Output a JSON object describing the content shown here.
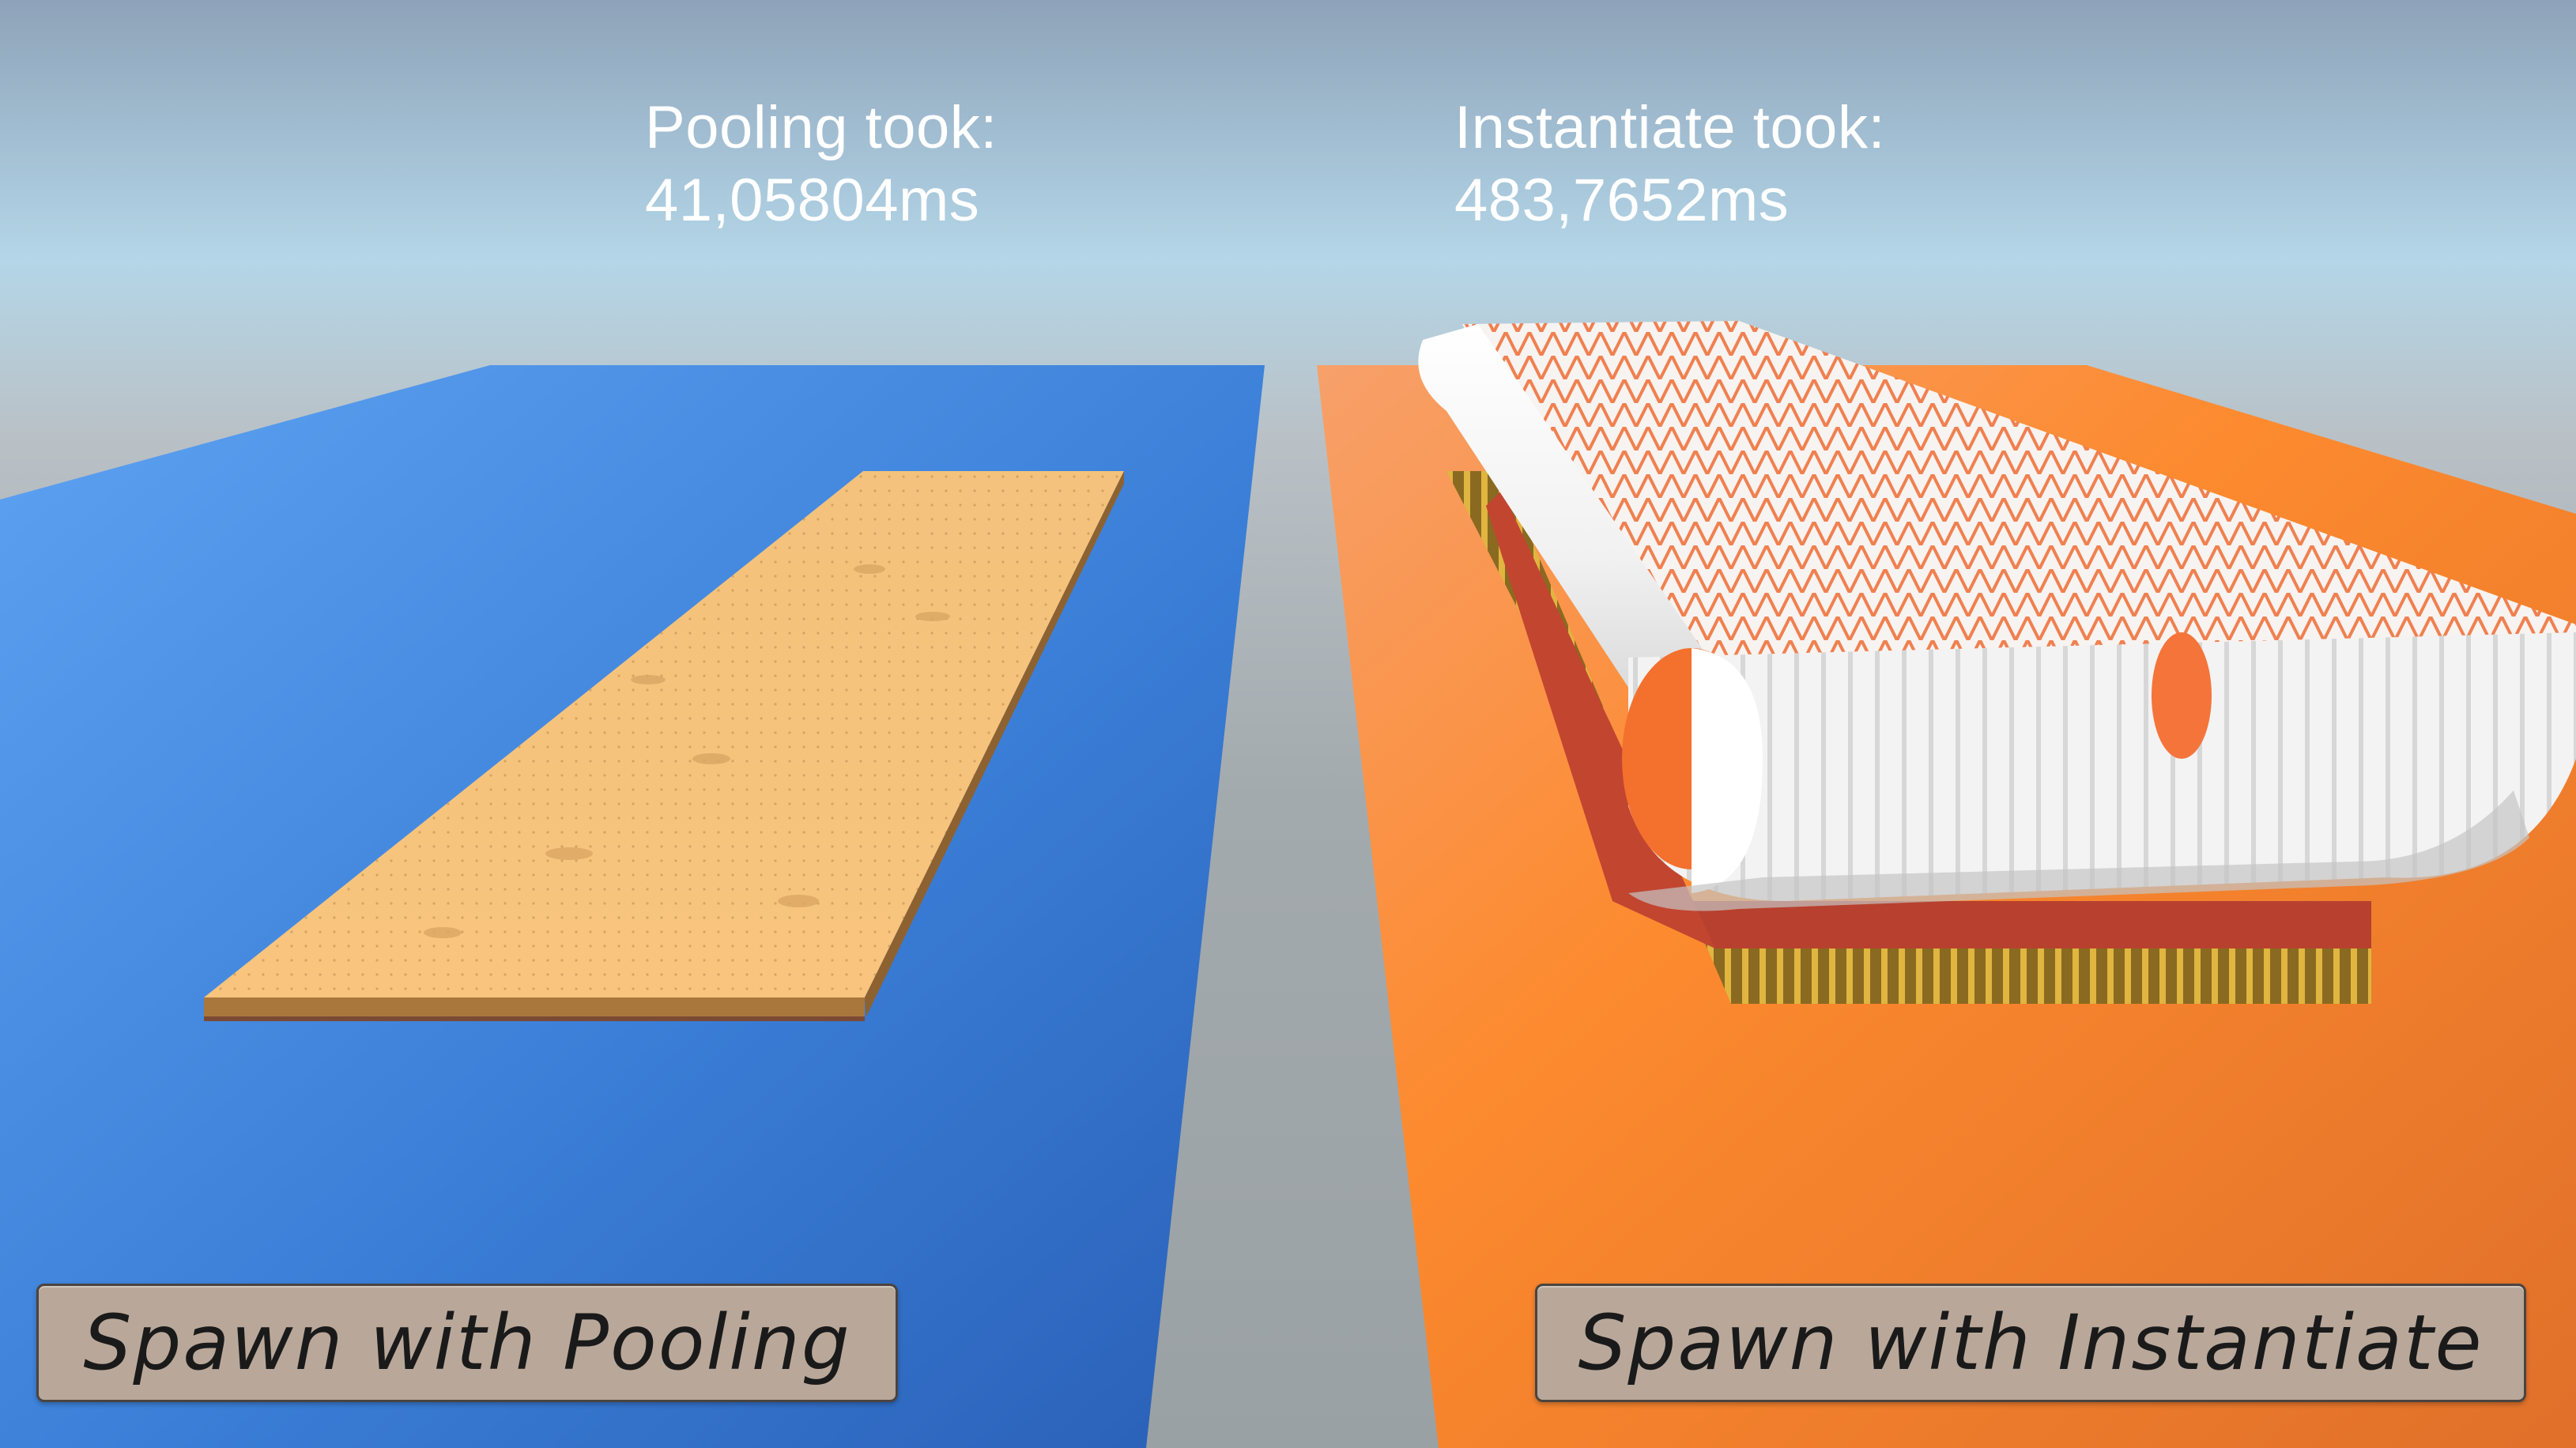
{
  "pooling": {
    "label": "Pooling took:",
    "value": "41,05804ms"
  },
  "instantiate": {
    "label": "Instantiate took:",
    "value": "483,7652ms"
  },
  "buttons": {
    "pooling": "Spawn with Pooling",
    "instantiate": "Spawn with Instantiate"
  },
  "colors": {
    "sky_top": "#8fa6bd",
    "horizon_glow": "#b7dcec",
    "ground": "#9ea4a7",
    "pooling_plane": "#3f86e6",
    "instantiate_plane": "#fb8a33",
    "pooled_slab": "#f7c67d",
    "instantiated_mass": "#f4f4f4",
    "button_fill": "#b9a89a"
  },
  "icons": {
    "pooled_objects": "flat-sand-slab",
    "instantiated_objects": "white-capsule-pile"
  }
}
